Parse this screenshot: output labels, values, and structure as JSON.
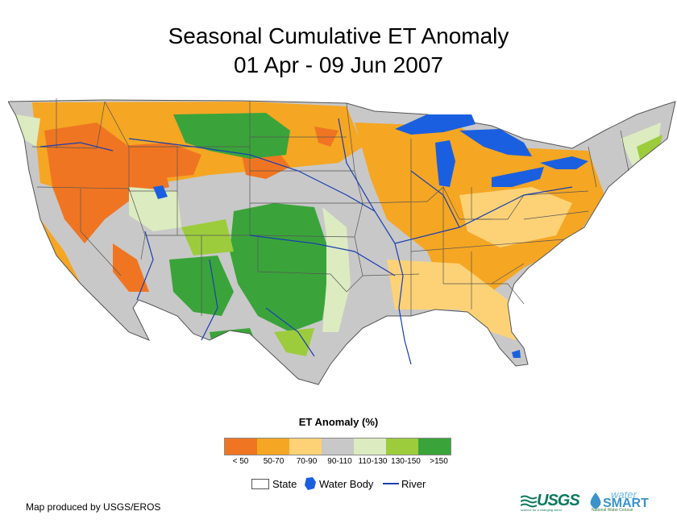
{
  "title": {
    "line1": "Seasonal Cumulative ET Anomaly",
    "line2": "01 Apr - 09 Jun 2007"
  },
  "legend": {
    "title": "ET Anomaly (%)",
    "classes": [
      {
        "label": "< 50",
        "color": "#f07522"
      },
      {
        "label": "50-70",
        "color": "#f5a623"
      },
      {
        "label": "70-90",
        "color": "#fdd277"
      },
      {
        "label": "90-110",
        "color": "#c8c8c8"
      },
      {
        "label": "110-130",
        "color": "#dcebc0"
      },
      {
        "label": "130-150",
        "color": "#9ccc3c"
      },
      {
        "label": ">150",
        "color": "#3aa43a"
      }
    ],
    "symbols": {
      "state": "State",
      "water": "Water Body",
      "river": "River"
    }
  },
  "credit": "Map produced by USGS/EROS",
  "logos": {
    "usgs": "USGS",
    "usgs_tagline": "science for a changing world",
    "ws_top": "water",
    "ws_main": "SMART",
    "ws_sub": "National Water Census"
  },
  "colors": {
    "water": "#1a5fe0",
    "river": "#1a3fb0",
    "state_line": "#555555"
  }
}
